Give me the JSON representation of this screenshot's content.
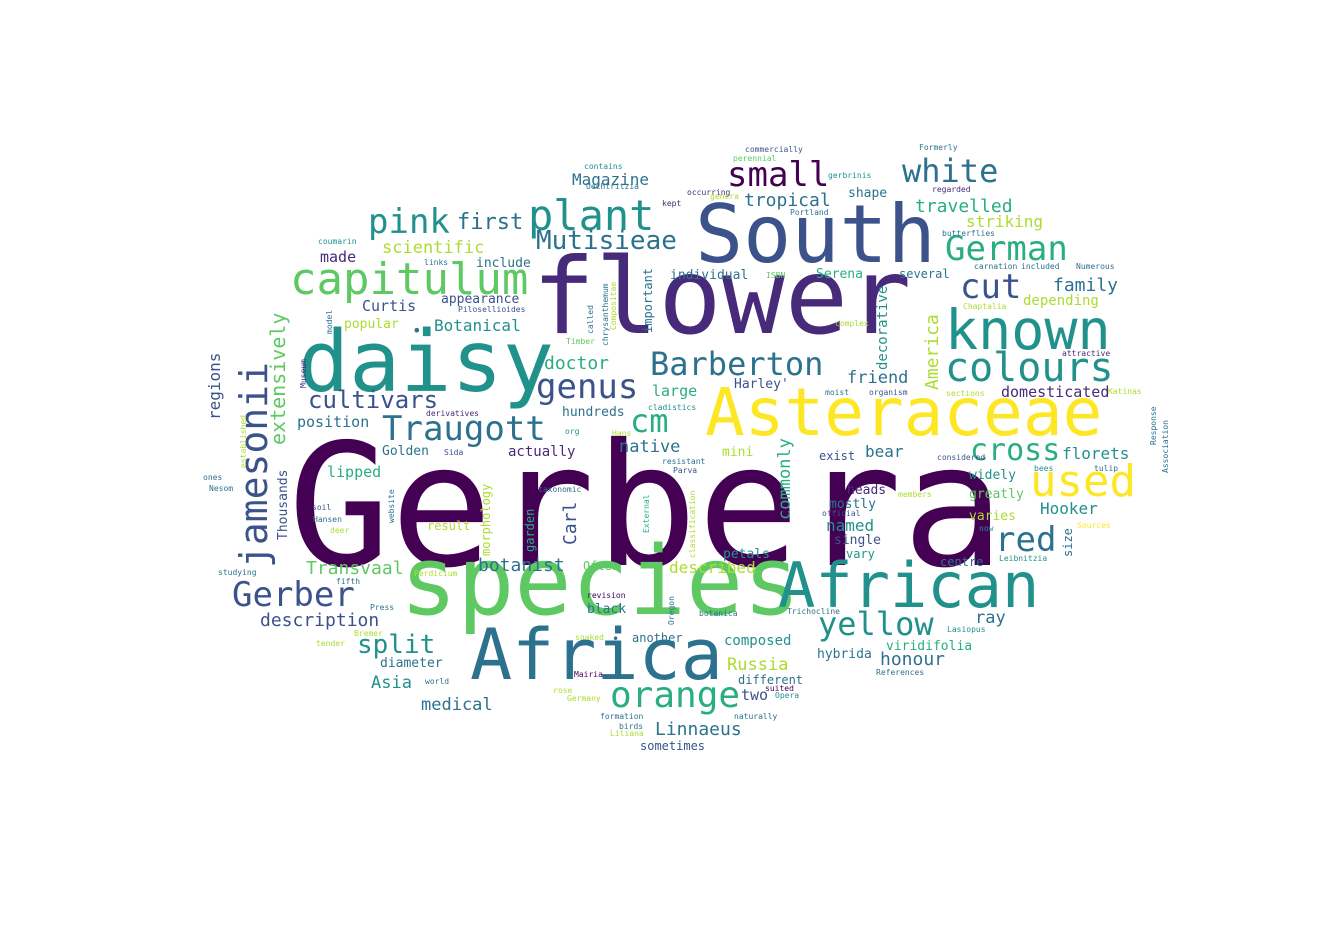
{
  "words": [
    {
      "text": "Gerbera",
      "color": "#440154"
    },
    {
      "text": "flower",
      "color": "#472a7a"
    },
    {
      "text": "species",
      "color": "#5ec962"
    },
    {
      "text": "South",
      "color": "#3b528b"
    },
    {
      "text": "daisy",
      "color": "#21918c"
    },
    {
      "text": "Africa",
      "color": "#2c728e"
    },
    {
      "text": "Asteraceae",
      "color": "#fde725"
    },
    {
      "text": "African",
      "color": "#21918c"
    },
    {
      "text": "known",
      "color": "#21918c"
    },
    {
      "text": "capitulum",
      "color": "#5ec962"
    },
    {
      "text": "plant",
      "color": "#21918c"
    },
    {
      "text": "used",
      "color": "#fde725"
    },
    {
      "text": "orange",
      "color": "#28ae80"
    },
    {
      "text": "colours",
      "color": "#21918c"
    },
    {
      "text": "jamesonii",
      "color": "#3b528b"
    },
    {
      "text": "German",
      "color": "#28ae80"
    },
    {
      "text": "cm",
      "color": "#28ae80"
    },
    {
      "text": "Barberton",
      "color": "#2c728e"
    },
    {
      "text": "genus",
      "color": "#3b528b"
    },
    {
      "text": "Traugott",
      "color": "#2c728e"
    },
    {
      "text": "Gerber",
      "color": "#3b528b"
    },
    {
      "text": "small",
      "color": "#440154"
    },
    {
      "text": "white",
      "color": "#2c728e"
    },
    {
      "text": "yellow",
      "color": "#21918c"
    },
    {
      "text": "red",
      "color": "#2c728e"
    },
    {
      "text": "pink",
      "color": "#21918c"
    },
    {
      "text": "cut",
      "color": "#3b528b"
    },
    {
      "text": "cross",
      "color": "#28ae80"
    },
    {
      "text": "Mutisieae",
      "color": "#2c728e"
    },
    {
      "text": "cultivars",
      "color": "#3b528b"
    },
    {
      "text": "split",
      "color": "#21918c"
    },
    {
      "text": "extensively",
      "color": "#5ec962"
    },
    {
      "text": "first",
      "color": "#2c728e"
    },
    {
      "text": "Linnaeus",
      "color": "#2c728e"
    },
    {
      "text": "description",
      "color": "#3b528b"
    },
    {
      "text": "Magazine",
      "color": "#2c728e"
    },
    {
      "text": "tropical",
      "color": "#2c728e"
    },
    {
      "text": "travelled",
      "color": "#28ae80"
    },
    {
      "text": "family",
      "color": "#2c728e"
    },
    {
      "text": "Hooker",
      "color": "#21918c"
    },
    {
      "text": "scientific",
      "color": "#addc30"
    },
    {
      "text": "botanist",
      "color": "#2c728e"
    },
    {
      "text": "Transvaal",
      "color": "#5ec962"
    },
    {
      "text": "honour",
      "color": "#2c728e"
    },
    {
      "text": "Asia",
      "color": "#21918c"
    },
    {
      "text": "medical",
      "color": "#2c728e"
    },
    {
      "text": "Russia",
      "color": "#addc30"
    },
    {
      "text": "regions",
      "color": "#3b528b"
    },
    {
      "text": "America",
      "color": "#addc30"
    },
    {
      "text": "friend",
      "color": "#2c728e"
    },
    {
      "text": "Botanical",
      "color": "#21918c"
    },
    {
      "text": "doctor",
      "color": "#28ae80"
    },
    {
      "text": "commonly",
      "color": "#28ae80"
    },
    {
      "text": "Carl",
      "color": "#3b528b"
    },
    {
      "text": "florets",
      "color": "#21918c"
    },
    {
      "text": "Curtis",
      "color": "#3b528b"
    },
    {
      "text": "named",
      "color": "#21918c"
    },
    {
      "text": "striking",
      "color": "#addc30"
    },
    {
      "text": "made",
      "color": "#472a7a"
    },
    {
      "text": "native",
      "color": "#2c728e"
    },
    {
      "text": "domesticated",
      "color": "#472a7a"
    },
    {
      "text": "large",
      "color": "#28ae80"
    },
    {
      "text": "Golden",
      "color": "#2c728e"
    },
    {
      "text": "lipped",
      "color": "#28ae80"
    },
    {
      "text": "described",
      "color": "#addc30"
    },
    {
      "text": "appearance",
      "color": "#3b528b"
    },
    {
      "text": "popular",
      "color": "#addc30"
    },
    {
      "text": "position",
      "color": "#2c728e"
    },
    {
      "text": "depending",
      "color": "#addc30"
    },
    {
      "text": "decorative",
      "color": "#21918c"
    },
    {
      "text": "ray",
      "color": "#2c728e"
    },
    {
      "text": "bear",
      "color": "#2c728e"
    },
    {
      "text": "heads",
      "color": "#472a7a"
    },
    {
      "text": "diameter",
      "color": "#2c728e"
    },
    {
      "text": "composed",
      "color": "#21918c"
    },
    {
      "text": "viridifolia",
      "color": "#28ae80"
    },
    {
      "text": "hybrida",
      "color": "#2c728e"
    },
    {
      "text": "two",
      "color": "#3b528b"
    },
    {
      "text": "include",
      "color": "#2c728e"
    },
    {
      "text": "individual",
      "color": "#2c728e"
    },
    {
      "text": "shape",
      "color": "#2c728e"
    },
    {
      "text": "actually",
      "color": "#472a7a"
    },
    {
      "text": "hundreds",
      "color": "#2c728e"
    },
    {
      "text": "mostly",
      "color": "#2c728e"
    },
    {
      "text": "single",
      "color": "#3b528b"
    },
    {
      "text": "Thousands",
      "color": "#3b528b"
    },
    {
      "text": "widely",
      "color": "#21918c"
    },
    {
      "text": "greatly",
      "color": "#5ec962"
    },
    {
      "text": "varies",
      "color": "#addc30"
    },
    {
      "text": "vary",
      "color": "#21918c"
    },
    {
      "text": "centre",
      "color": "#2c728e"
    },
    {
      "text": "size",
      "color": "#2c728e"
    },
    {
      "text": "exist",
      "color": "#3b528b"
    },
    {
      "text": "black",
      "color": "#2c728e"
    },
    {
      "text": "another",
      "color": "#2c728e"
    },
    {
      "text": "different",
      "color": "#2c728e"
    },
    {
      "text": "sometimes",
      "color": "#3b528b"
    },
    {
      "text": "petals",
      "color": "#21918c"
    },
    {
      "text": "Often",
      "color": "#5ec962"
    },
    {
      "text": "Serena",
      "color": "#28ae80"
    },
    {
      "text": "several",
      "color": "#2c728e"
    },
    {
      "text": "Harley'",
      "color": "#3b528b"
    },
    {
      "text": "mini",
      "color": "#addc30"
    },
    {
      "text": "result",
      "color": "#addc30"
    },
    {
      "text": "garden",
      "color": "#28ae80"
    },
    {
      "text": "morphology",
      "color": "#addc30"
    },
    {
      "text": "important",
      "color": "#2c728e"
    },
    {
      "text": "contains",
      "color": "#21918c"
    },
    {
      "text": "coumarin",
      "color": "#21918c"
    },
    {
      "text": "Uechtritzia",
      "color": "#2c728e"
    },
    {
      "text": "occurring",
      "color": "#472a7a"
    },
    {
      "text": "kept",
      "color": "#472a7a"
    },
    {
      "text": "commercially",
      "color": "#3b528b"
    },
    {
      "text": "perennial",
      "color": "#5ec962"
    },
    {
      "text": "Formerly",
      "color": "#2c728e"
    },
    {
      "text": "gerbrinis",
      "color": "#21918c"
    },
    {
      "text": "regarded",
      "color": "#472a7a"
    },
    {
      "text": "butterflies",
      "color": "#2c728e"
    },
    {
      "text": "carnation",
      "color": "#2c728e"
    },
    {
      "text": "included",
      "color": "#2c728e"
    },
    {
      "text": "Numerous",
      "color": "#2c728e"
    },
    {
      "text": "links",
      "color": "#2c728e"
    },
    {
      "text": "chrysanthemum",
      "color": "#2c728e"
    },
    {
      "text": "Compositae",
      "color": "#addc30"
    },
    {
      "text": "called",
      "color": "#2c728e"
    },
    {
      "text": "Portland",
      "color": "#2c728e"
    },
    {
      "text": "genera",
      "color": "#addc30"
    },
    {
      "text": "ISBN",
      "color": "#5ec962"
    },
    {
      "text": "Timber",
      "color": "#5ec962"
    },
    {
      "text": "Pilosellioides",
      "color": "#3b528b"
    },
    {
      "text": "model",
      "color": "#2c728e"
    },
    {
      "text": "complex",
      "color": "#addc30"
    },
    {
      "text": "Chaptalia",
      "color": "#addc30"
    },
    {
      "text": "Museum",
      "color": "#472a7a"
    },
    {
      "text": "attractive",
      "color": "#472a7a"
    },
    {
      "text": "derivatives",
      "color": "#472a7a"
    },
    {
      "text": "org",
      "color": "#21918c"
    },
    {
      "text": "cladistics",
      "color": "#21918c"
    },
    {
      "text": "moist",
      "color": "#2c728e"
    },
    {
      "text": "organism",
      "color": "#3b528b"
    },
    {
      "text": "sections",
      "color": "#addc30"
    },
    {
      "text": "Katinas",
      "color": "#addc30"
    },
    {
      "text": "Response",
      "color": "#2c728e"
    },
    {
      "text": "Association",
      "color": "#2c728e"
    },
    {
      "text": "established",
      "color": "#addc30"
    },
    {
      "text": "Hans",
      "color": "#addc30"
    },
    {
      "text": "Sida",
      "color": "#3b528b"
    },
    {
      "text": "considered",
      "color": "#3b528b"
    },
    {
      "text": "ones",
      "color": "#2c728e"
    },
    {
      "text": "resistant",
      "color": "#2c728e"
    },
    {
      "text": "Parva",
      "color": "#3b528b"
    },
    {
      "text": "bees",
      "color": "#21918c"
    },
    {
      "text": "tulip",
      "color": "#2c728e"
    },
    {
      "text": "Nesom",
      "color": "#2c728e"
    },
    {
      "text": "taxonomic",
      "color": "#2c728e"
    },
    {
      "text": "members",
      "color": "#addc30"
    },
    {
      "text": "soil",
      "color": "#3b528b"
    },
    {
      "text": "website",
      "color": "#2c728e"
    },
    {
      "text": "External",
      "color": "#28ae80"
    },
    {
      "text": "official",
      "color": "#3b528b"
    },
    {
      "text": "Sources",
      "color": "#fde725"
    },
    {
      "text": "Hansen",
      "color": "#2c728e"
    },
    {
      "text": "deer",
      "color": "#addc30"
    },
    {
      "text": "classification",
      "color": "#addc30"
    },
    {
      "text": "now",
      "color": "#21918c"
    },
    {
      "text": "Leibnitzia",
      "color": "#21918c"
    },
    {
      "text": "studying",
      "color": "#2c728e"
    },
    {
      "text": "Perdicium",
      "color": "#addc30"
    },
    {
      "text": "fifth",
      "color": "#2c728e"
    },
    {
      "text": "revision",
      "color": "#440154"
    },
    {
      "text": "Oregon",
      "color": "#2c728e"
    },
    {
      "text": "Press",
      "color": "#2c728e"
    },
    {
      "text": "botanica",
      "color": "#2c728e"
    },
    {
      "text": "Trichocline",
      "color": "#2c728e"
    },
    {
      "text": "Bremer",
      "color": "#addc30"
    },
    {
      "text": "soaked",
      "color": "#addc30"
    },
    {
      "text": "Lasiopus",
      "color": "#21918c"
    },
    {
      "text": "tender",
      "color": "#addc30"
    },
    {
      "text": "Mairia",
      "color": "#440154"
    },
    {
      "text": "References",
      "color": "#2c728e"
    },
    {
      "text": "world",
      "color": "#2c728e"
    },
    {
      "text": "suited",
      "color": "#440154"
    },
    {
      "text": "rose",
      "color": "#addc30"
    },
    {
      "text": "Opera",
      "color": "#21918c"
    },
    {
      "text": "Germany",
      "color": "#addc30"
    },
    {
      "text": "formation",
      "color": "#2c728e"
    },
    {
      "text": "naturally",
      "color": "#2c728e"
    },
    {
      "text": "birds",
      "color": "#2c728e"
    },
    {
      "text": "Liliana",
      "color": "#addc30"
    },
    {
      "text": "•",
      "color": "#2c728e"
    },
    {
      "text": "•",
      "color": "#2c728e"
    }
  ]
}
